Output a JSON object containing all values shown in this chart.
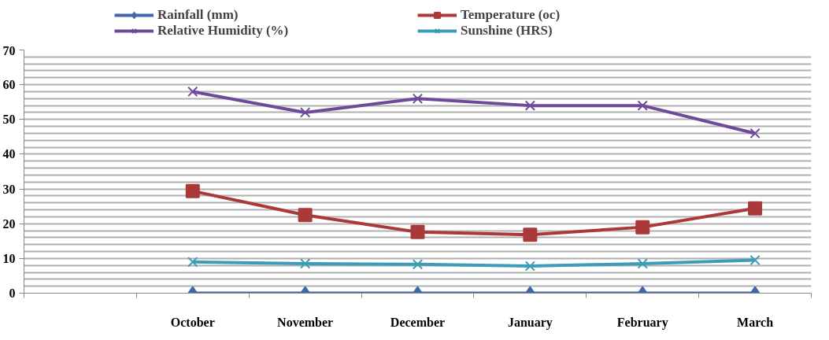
{
  "chart_data": {
    "type": "line",
    "categories": [
      null,
      "October",
      "November",
      "December",
      "January",
      "February",
      "March"
    ],
    "series": [
      {
        "name": "Rainfall (mm)",
        "color": "#4169aa",
        "marker": "diamond",
        "values": [
          null,
          0,
          0,
          0,
          0,
          0,
          0
        ]
      },
      {
        "name": "Temperature (oc)",
        "color": "#aa3a3a",
        "marker": "square",
        "values": [
          null,
          29.4,
          22.5,
          17.6,
          16.8,
          19,
          24.4
        ]
      },
      {
        "name": "Relative Humidity (%)",
        "color": "#6f4a9a",
        "marker": "cross",
        "values": [
          null,
          58,
          52,
          56,
          54,
          54,
          46
        ]
      },
      {
        "name": "Sunshine (HRS)",
        "color": "#3d9cb8",
        "marker": "cross",
        "values": [
          null,
          9,
          8.5,
          8.3,
          7.8,
          8.5,
          9.5
        ]
      }
    ],
    "ylim": [
      0,
      70
    ],
    "yticks": [
      0,
      {
        "value": 2,
        "label": null
      },
      {
        "value": 4,
        "label": null
      },
      {
        "value": 6,
        "label": null
      },
      {
        "value": 8,
        "label": null
      },
      10,
      {
        "value": 12,
        "label": null
      },
      {
        "value": 14,
        "label": null
      },
      {
        "value": 16,
        "label": null
      },
      {
        "value": 18,
        "label": null
      },
      20,
      {
        "value": 22,
        "label": null
      },
      {
        "value": 24,
        "label": null
      },
      {
        "value": 26,
        "label": null
      },
      {
        "value": 28,
        "label": null
      },
      30,
      {
        "value": 32,
        "label": null
      },
      {
        "value": 34,
        "label": null
      },
      {
        "value": 36,
        "label": null
      },
      {
        "value": 38,
        "label": null
      },
      40,
      {
        "value": 42,
        "label": null
      },
      {
        "value": 44,
        "label": null
      },
      {
        "value": 46,
        "label": null
      },
      {
        "value": 48,
        "label": null
      },
      50,
      {
        "value": 52,
        "label": null
      },
      {
        "value": 54,
        "label": null
      },
      {
        "value": 56,
        "label": null
      },
      {
        "value": 58,
        "label": null
      },
      60,
      {
        "value": 62,
        "label": null
      },
      {
        "value": 64,
        "label": null
      },
      {
        "value": 66,
        "label": null
      },
      {
        "value": 68,
        "label": null
      },
      70
    ],
    "grid": "y",
    "legend": "top",
    "line_style": "solid"
  }
}
